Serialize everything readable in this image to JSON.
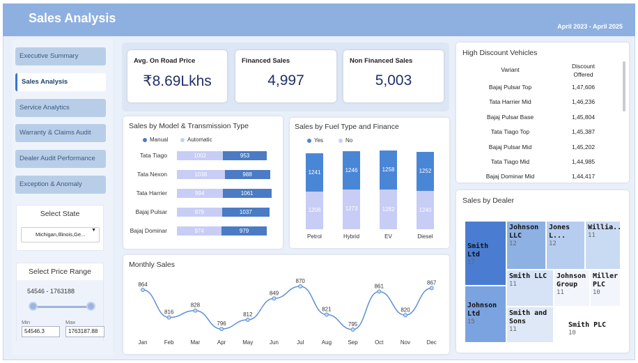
{
  "header": {
    "title": "Sales Analysis",
    "period": "April 2023 - April 2025"
  },
  "sidebar": {
    "items": [
      {
        "label": "Executive Summary",
        "active": false
      },
      {
        "label": "Sales Analysis",
        "active": true
      },
      {
        "label": "Service Analytics",
        "active": false
      },
      {
        "label": "Warranty & Claims Audit",
        "active": false
      },
      {
        "label": "Dealer Audit Performance",
        "active": false
      },
      {
        "label": "Exception & Anomaly",
        "active": false
      }
    ],
    "state_title": "Select State",
    "state_value": "Michigan,Illinois,Ge...",
    "price_title": "Select Price Range",
    "price_range": "54546 - 1763188",
    "min_label": "Min",
    "max_label": "Max",
    "min_value": "54546.3",
    "max_value": "1763187.88"
  },
  "kpis": [
    {
      "label": "Avg. On Road Price",
      "value": "₹8.69Lkhs"
    },
    {
      "label": "Financed Sales",
      "value": "4,997"
    },
    {
      "label": "Non Financed Sales",
      "value": "5,003"
    }
  ],
  "model_chart": {
    "title": "Sales by Model & Transmission Type",
    "legend": [
      "Manual",
      "Automatic"
    ],
    "colors": {
      "manual": "#4a7bc4",
      "automatic": "#c7cdf5"
    },
    "chart_data": {
      "type": "bar",
      "categories": [
        "Tata Tiago",
        "Tata Nexon",
        "Tata Harrier",
        "Bajaj Pulsar",
        "Bajaj Dominar"
      ],
      "series": [
        {
          "name": "Automatic",
          "values": [
            1002,
            1038,
            994,
            979,
            974
          ]
        },
        {
          "name": "Manual",
          "values": [
            953,
            988,
            1061,
            1037,
            979
          ]
        }
      ]
    }
  },
  "fuel_chart": {
    "title": "Sales by Fuel Type and Finance",
    "legend": [
      "Yes",
      "No"
    ],
    "colors": {
      "yes": "#4a86d6",
      "no": "#c7cdf5"
    },
    "chart_data": {
      "type": "bar",
      "categories": [
        "Petrol",
        "Hybrid",
        "EV",
        "Diesel"
      ],
      "series": [
        {
          "name": "Yes",
          "values": [
            1241,
            1246,
            1258,
            1252
          ]
        },
        {
          "name": "No",
          "values": [
            1208,
            1273,
            1282,
            1240
          ]
        }
      ]
    }
  },
  "monthly_chart": {
    "title": "Monthly Sales",
    "chart_data": {
      "type": "line",
      "categories": [
        "Jan",
        "Feb",
        "Mar",
        "Apr",
        "May",
        "Jun",
        "Jul",
        "Aug",
        "Sep",
        "Oct",
        "Nov",
        "Dec"
      ],
      "values": [
        864,
        816,
        828,
        796,
        812,
        849,
        870,
        821,
        795,
        861,
        820,
        867
      ]
    }
  },
  "discount_table": {
    "title": "High Discount Vehicles",
    "headers": [
      "Variant",
      "Discount Offered"
    ],
    "rows": [
      [
        "Bajaj Pulsar Top",
        "1,47,606"
      ],
      [
        "Tata Harrier Mid",
        "1,46,236"
      ],
      [
        "Bajaj Pulsar Base",
        "1,45,804"
      ],
      [
        "Tata Tiago Top",
        "1,45,387"
      ],
      [
        "Bajaj Pulsar Mid",
        "1,45,202"
      ],
      [
        "Tata Tiago Mid",
        "1,44,985"
      ],
      [
        "Bajaj Dominar Mid",
        "1,44,417"
      ]
    ]
  },
  "dealer_treemap": {
    "title": "Sales by Dealer",
    "items": [
      {
        "name": "Smith Ltd",
        "value": "17",
        "color": "#4a7dd1"
      },
      {
        "name": "Johnson Ltd",
        "value": "15",
        "color": "#7ba3df"
      },
      {
        "name": "Johnson LLC",
        "value": "12",
        "color": "#8eb1e3"
      },
      {
        "name": "Jones L...",
        "value": "12",
        "color": "#b6cdef"
      },
      {
        "name": "Willia...",
        "value": "11",
        "color": "#c9daf3"
      },
      {
        "name": "Smith LLC",
        "value": "11",
        "color": "#d6e3f6"
      },
      {
        "name": "Johnson Group",
        "value": "11",
        "color": "#f2f5fb"
      },
      {
        "name": "Miller PLC",
        "value": "10",
        "color": "#f2f5fb"
      },
      {
        "name": "Smith and Sons",
        "value": "11",
        "color": "#dfe8f6"
      },
      {
        "name": "Smith PLC",
        "value": "10",
        "color": "#ffffff"
      }
    ]
  }
}
